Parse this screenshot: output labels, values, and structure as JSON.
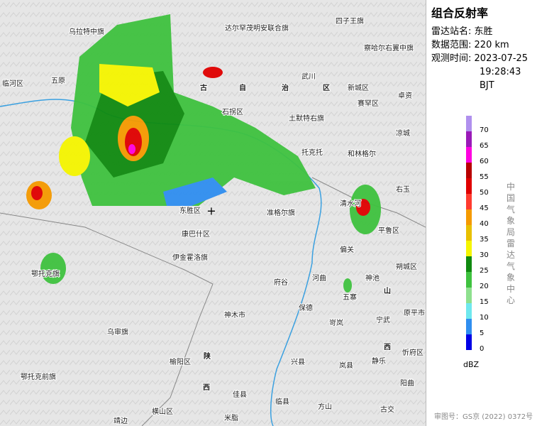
{
  "panel": {
    "title": "组合反射率",
    "station_label": "雷达站名:",
    "station": "东胜",
    "range_label": "数据范围:",
    "range": "220 km",
    "time_label": "观测时间:",
    "date": "2023-07-25",
    "time": "19:28:43 BJT"
  },
  "legend": {
    "levels": [
      {
        "value": 0,
        "color": "#0000e6"
      },
      {
        "value": 5,
        "color": "#2f8ef0"
      },
      {
        "value": 10,
        "color": "#6fe8ee"
      },
      {
        "value": 15,
        "color": "#8ee08e"
      },
      {
        "value": 20,
        "color": "#3fc23f"
      },
      {
        "value": 25,
        "color": "#108a10"
      },
      {
        "value": 30,
        "color": "#f5f500"
      },
      {
        "value": 35,
        "color": "#e8c000"
      },
      {
        "value": 40,
        "color": "#f59a00"
      },
      {
        "value": 45,
        "color": "#ff3b2f"
      },
      {
        "value": 50,
        "color": "#e00000"
      },
      {
        "value": 55,
        "color": "#b80000"
      },
      {
        "value": 60,
        "color": "#ff00e0"
      },
      {
        "value": 65,
        "color": "#9a1ab8"
      },
      {
        "value": 70,
        "color": "#b090ee"
      }
    ],
    "unit": "dBZ"
  },
  "watermark": "中国气象局雷达气象中心",
  "approval": "审图号：GS京 (2022) 0372号",
  "places": [
    "乌拉特中旗",
    "达尔罕茂明安联合旗",
    "四子王旗",
    "察哈尔右翼中旗",
    "临河区",
    "五原",
    "武川",
    "新城区",
    "卓资",
    "赛罕区",
    "石拐区",
    "土默特右旗",
    "凉城",
    "托克托",
    "和林格尔",
    "右玉",
    "东胜区",
    "准格尔旗",
    "清水河",
    "平鲁区",
    "伊金霍洛旗",
    "康巴什区",
    "偏关",
    "鄂托克旗",
    "朔城区",
    "府谷",
    "河曲",
    "神池",
    "五寨",
    "山",
    "保德",
    "神木市",
    "原平市",
    "宁武",
    "岢岚",
    "乌审旗",
    "西",
    "忻府区",
    "榆阳区",
    "陕",
    "兴县",
    "岚县",
    "静乐",
    "鄂托克前旗",
    "西",
    "佳县",
    "临县",
    "阳曲",
    "方山",
    "横山区",
    "米脂",
    "靖边",
    "古交",
    "古",
    "自",
    "治",
    "区"
  ]
}
